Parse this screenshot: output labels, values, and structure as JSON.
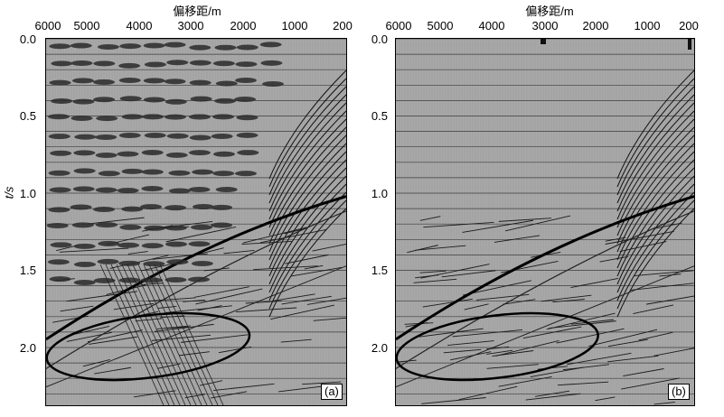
{
  "panels": [
    {
      "id": "a",
      "tag": "(a)",
      "x_title": "偏移距/m",
      "x_ticks": [
        "6000",
        "5000",
        "4000",
        "3000",
        "2000",
        "1000",
        "200"
      ],
      "y_title": "t/s",
      "y_ticks": [
        "0.0",
        "0.5",
        "1.0",
        "1.5",
        "2.0"
      ]
    },
    {
      "id": "b",
      "tag": "(b)",
      "x_title": "偏移距/m",
      "x_ticks": [
        "6000",
        "5000",
        "4000",
        "3000",
        "2000",
        "1000",
        "200"
      ],
      "y_ticks": [
        "0.0",
        "0.5",
        "1.0",
        "1.5",
        "2.0"
      ]
    }
  ]
}
